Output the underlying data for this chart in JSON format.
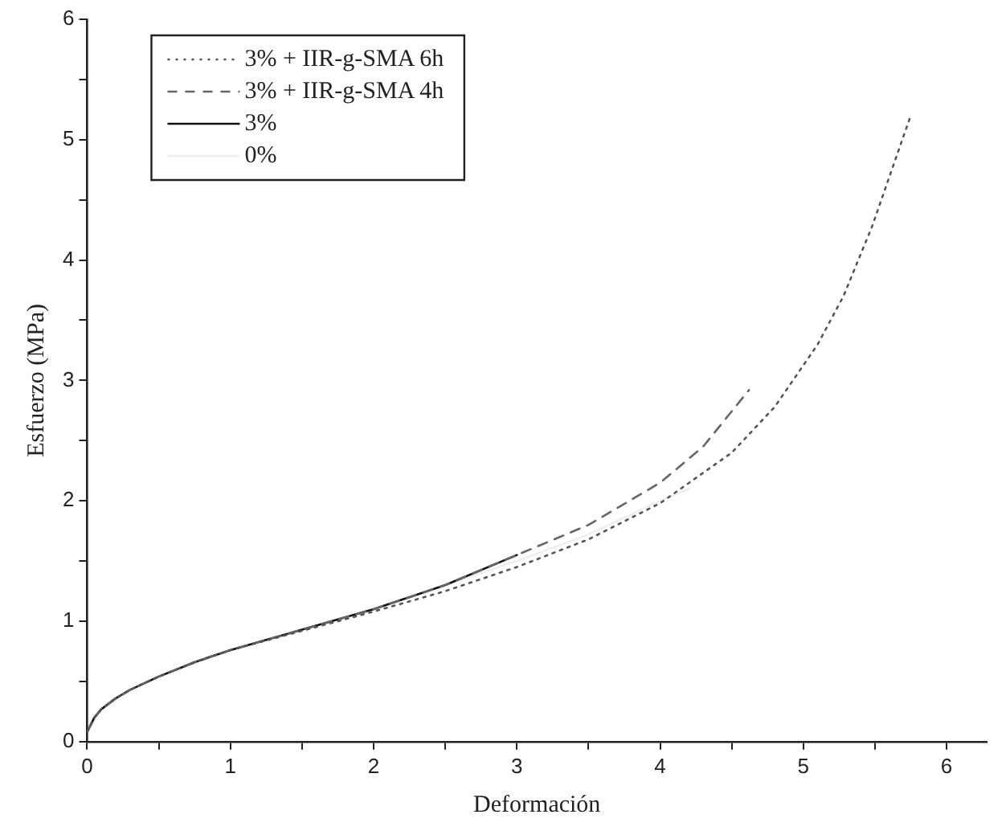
{
  "chart_data": {
    "type": "line",
    "xlabel": "Deformación",
    "ylabel": "Esfuerzo (MPa)",
    "xlim": [
      0,
      6.28
    ],
    "ylim": [
      0,
      6
    ],
    "xticks": [
      0,
      {
        "value": 0.5,
        "label": null
      },
      1,
      {
        "value": 1.5,
        "label": null
      },
      2,
      {
        "value": 2.5,
        "label": null
      },
      3,
      {
        "value": 3.5,
        "label": null
      },
      4,
      {
        "value": 4.5,
        "label": null
      },
      5,
      {
        "value": 5.5,
        "label": null
      },
      6
    ],
    "yticks": [
      0,
      {
        "value": 0.5,
        "label": null
      },
      1,
      {
        "value": 1.5,
        "label": null
      },
      2,
      {
        "value": 2.5,
        "label": null
      },
      3,
      {
        "value": 3.5,
        "label": null
      },
      4,
      {
        "value": 4.5,
        "label": null
      },
      5,
      {
        "value": 5.5,
        "label": null
      },
      6
    ],
    "grid": false,
    "legend": "top left",
    "marker": "none",
    "series": [
      {
        "name": "3% + IIR-g-SMA 6h",
        "color": "#555555",
        "line_style": "dotted",
        "x": [
          0,
          0.05,
          0.1,
          0.2,
          0.3,
          0.5,
          0.75,
          1,
          1.5,
          2,
          2.5,
          3,
          3.5,
          4,
          4.5,
          4.8,
          5.1,
          5.28,
          5.48,
          5.72,
          5.75
        ],
        "values": [
          0.08,
          0.2,
          0.27,
          0.36,
          0.43,
          0.54,
          0.66,
          0.76,
          0.92,
          1.08,
          1.25,
          1.45,
          1.68,
          1.98,
          2.4,
          2.78,
          3.3,
          3.7,
          4.28,
          5.1,
          5.2
        ]
      },
      {
        "name": "3% + IIR-g-SMA 4h",
        "color": "#666666",
        "line_style": "dashed",
        "x": [
          0,
          0.05,
          0.1,
          0.2,
          0.3,
          0.5,
          0.75,
          1,
          1.5,
          2,
          2.5,
          3,
          3.5,
          4,
          4.3,
          4.62
        ],
        "values": [
          0.08,
          0.2,
          0.27,
          0.36,
          0.43,
          0.54,
          0.66,
          0.76,
          0.93,
          1.1,
          1.3,
          1.55,
          1.8,
          2.15,
          2.45,
          2.92
        ]
      },
      {
        "name": "3%",
        "color": "#111111",
        "line_style": "solid",
        "x": [
          0,
          0.05,
          0.1,
          0.2,
          0.3,
          0.5,
          0.75,
          1,
          1.5,
          2,
          2.5,
          3
        ],
        "values": [
          0.08,
          0.2,
          0.27,
          0.36,
          0.43,
          0.54,
          0.66,
          0.76,
          0.93,
          1.1,
          1.3,
          1.55
        ]
      },
      {
        "name": "0%",
        "color": "#eeeeee",
        "line_style": "solid",
        "x": [
          0,
          0.1,
          0.3,
          0.5,
          1,
          1.5,
          2,
          2.5,
          3,
          3.5,
          4,
          4.2
        ],
        "values": [
          0.08,
          0.27,
          0.43,
          0.54,
          0.76,
          0.93,
          1.1,
          1.3,
          1.5,
          1.72,
          2.0,
          2.1
        ]
      }
    ]
  }
}
